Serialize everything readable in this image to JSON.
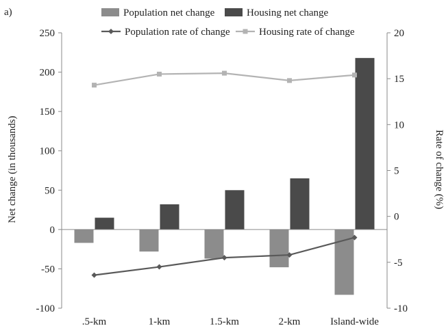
{
  "panel_label": "a)",
  "chart_data": {
    "type": "bar",
    "categories": [
      ".5-km",
      "1-km",
      "1.5-km",
      "2-km",
      "Island-wide"
    ],
    "series": [
      {
        "name": "Population net change",
        "type": "bar",
        "axis": "left",
        "values": [
          -17,
          -28,
          -37,
          -48,
          -83
        ],
        "color": "#8c8c8c"
      },
      {
        "name": "Housing net change",
        "type": "bar",
        "axis": "left",
        "values": [
          15,
          32,
          50,
          65,
          218
        ],
        "color": "#4a4a4a"
      },
      {
        "name": "Population rate of change",
        "type": "line",
        "marker": "diamond",
        "axis": "right",
        "values": [
          -6.4,
          -5.5,
          -4.5,
          -4.2,
          -2.3
        ],
        "color": "#595959"
      },
      {
        "name": "Housing rate of change",
        "type": "line",
        "marker": "square",
        "axis": "right",
        "values": [
          14.3,
          15.5,
          15.6,
          14.8,
          15.4
        ],
        "color": "#b3b3b3"
      }
    ],
    "ylabel": "Net change  (in thousands)",
    "y2label": "Rate of change (%)",
    "ylim": [
      -100,
      250
    ],
    "y2lim": [
      -10,
      20
    ],
    "yticks": [
      "250",
      "200",
      "150",
      "100",
      "50",
      "0",
      "-50",
      "-100"
    ],
    "y2ticks": [
      "20",
      "15",
      "10",
      "5",
      "0",
      "-5",
      "-10"
    ],
    "legend_position": "top",
    "grid": false
  }
}
